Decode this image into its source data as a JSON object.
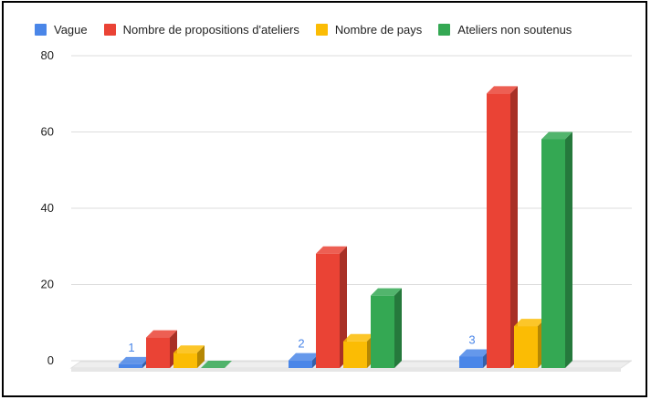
{
  "chart_data": {
    "type": "bar",
    "categories": [
      "1",
      "2",
      "3"
    ],
    "series": [
      {
        "name": "Vague",
        "values": [
          1,
          2,
          3
        ],
        "color": "#4a86e8"
      },
      {
        "name": "Nombre de propositions d'ateliers",
        "values": [
          8,
          30,
          72
        ],
        "color": "#ea4335"
      },
      {
        "name": "Nombre de pays",
        "values": [
          4,
          7,
          11
        ],
        "color": "#fbbc04"
      },
      {
        "name": "Ateliers non soutenus",
        "values": [
          0,
          19,
          60
        ],
        "color": "#34a853"
      }
    ],
    "data_labels": [
      "1",
      "2",
      "3"
    ],
    "ylim": [
      0,
      80
    ],
    "yticks": [
      "0",
      "20",
      "40",
      "60",
      "80"
    ],
    "grid": true,
    "legend_position": "top",
    "style": "3d"
  }
}
